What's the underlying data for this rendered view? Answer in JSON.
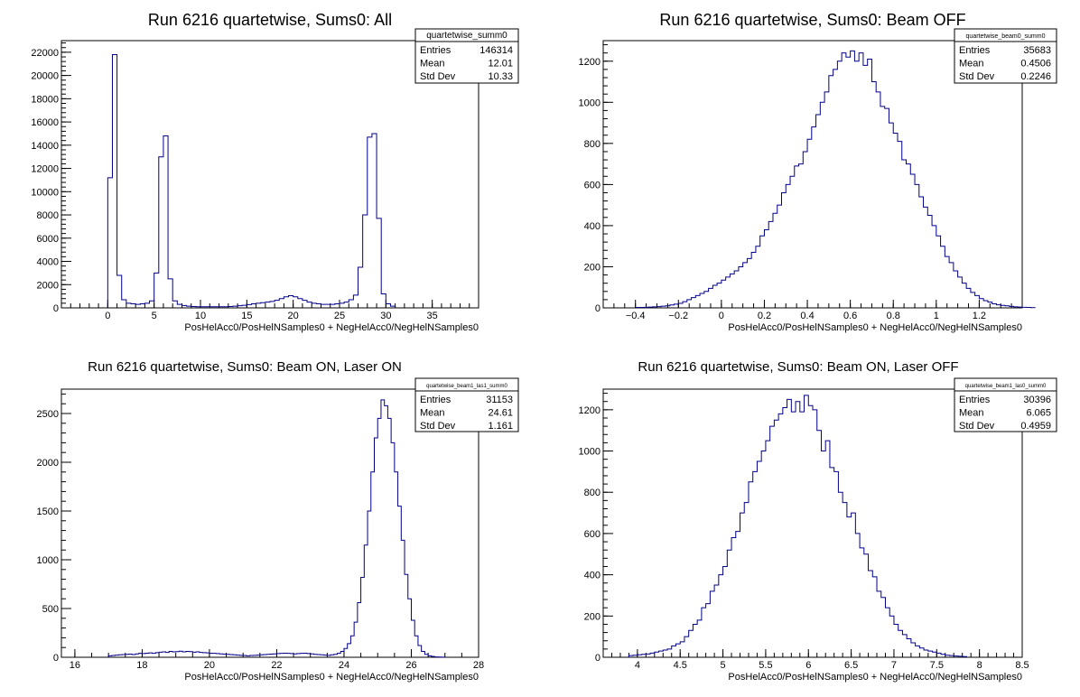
{
  "hist_color": "#00008b",
  "chart_data": [
    {
      "type": "bar",
      "title": "Run 6216 quartetwise, Sums0: All",
      "xlabel": "PosHelAcc0/PosHelNSamples0 + NegHelAcc0/NegHelNSamples0",
      "xlim": [
        -5,
        40
      ],
      "ylim": [
        0,
        23000
      ],
      "xticks": [
        0,
        5,
        10,
        15,
        20,
        25,
        30,
        35
      ],
      "yticks": [
        0,
        2000,
        4000,
        6000,
        8000,
        10000,
        12000,
        14000,
        16000,
        18000,
        20000,
        22000
      ],
      "xticks_minor": 5,
      "stats": {
        "name": "quartetwise_summ0",
        "rows": [
          {
            "label": "Entries",
            "value": "146314"
          },
          {
            "label": "Mean",
            "value": "12.01"
          },
          {
            "label": "Std Dev",
            "value": "10.33"
          }
        ]
      },
      "bins": {
        "edges_start": 0,
        "bin_width": 0.5,
        "values": [
          11200,
          21800,
          2800,
          700,
          400,
          350,
          300,
          350,
          400,
          600,
          3000,
          13000,
          14800,
          2500,
          600,
          300,
          200,
          150,
          120,
          100,
          100,
          100,
          100,
          100,
          100,
          100,
          120,
          150,
          180,
          220,
          280,
          350,
          400,
          450,
          500,
          550,
          650,
          800,
          950,
          1050,
          950,
          800,
          650,
          500,
          400,
          350,
          300,
          300,
          300,
          350,
          400,
          500,
          700,
          1100,
          3500,
          8000,
          14700,
          15000,
          7700,
          1200,
          350,
          150
        ]
      }
    },
    {
      "type": "bar",
      "title": "Run 6216 quartetwise, Sums0: Beam OFF",
      "xlabel": "PosHelAcc0/PosHelNSamples0 + NegHelAcc0/NegHelNSamples0",
      "xlim": [
        -0.55,
        1.4
      ],
      "ylim": [
        0,
        1300
      ],
      "xticks": [
        -0.4,
        -0.2,
        0,
        0.2,
        0.4,
        0.6,
        0.8,
        1,
        1.2
      ],
      "xtick_labels": [
        "−0.4",
        "−0.2",
        "0",
        "0.2",
        "0.4",
        "0.6",
        "0.8",
        "1",
        "1.2"
      ],
      "yticks": [
        0,
        200,
        400,
        600,
        800,
        1000,
        1200
      ],
      "xticks_minor": 4,
      "stats": {
        "name": "quartetwise_beam0_summ0",
        "rows": [
          {
            "label": "Entries",
            "value": "35683"
          },
          {
            "label": "Mean",
            "value": "0.4506"
          },
          {
            "label": "Std Dev",
            "value": "0.2246"
          }
        ]
      },
      "bins": {
        "edges_start": -0.4,
        "bin_width": 0.02,
        "values": [
          2,
          2,
          3,
          4,
          5,
          6,
          8,
          10,
          14,
          18,
          22,
          30,
          40,
          50,
          60,
          70,
          80,
          95,
          110,
          120,
          135,
          150,
          165,
          180,
          200,
          220,
          240,
          270,
          300,
          350,
          380,
          420,
          460,
          500,
          560,
          600,
          640,
          690,
          700,
          760,
          820,
          880,
          940,
          1000,
          1050,
          1130,
          1160,
          1200,
          1240,
          1220,
          1250,
          1200,
          1240,
          1180,
          1210,
          1100,
          1050,
          980,
          970,
          900,
          850,
          810,
          720,
          700,
          650,
          600,
          540,
          490,
          450,
          400,
          350,
          300,
          250,
          220,
          180,
          150,
          120,
          95,
          75,
          60,
          45,
          35,
          28,
          20,
          15,
          12,
          10,
          7,
          5,
          4,
          3,
          2,
          1
        ]
      }
    },
    {
      "type": "bar",
      "title": "Run 6216 quartetwise, Sums0: Beam ON, Laser ON",
      "xlabel": "PosHelAcc0/PosHelNSamples0 + NegHelAcc0/NegHelNSamples0",
      "xlim": [
        15.6,
        28
      ],
      "ylim": [
        0,
        2750
      ],
      "xticks": [
        16,
        18,
        20,
        22,
        24,
        26,
        28
      ],
      "yticks": [
        0,
        500,
        1000,
        1500,
        2000,
        2500
      ],
      "xticks_minor": 4,
      "stats": {
        "name": "quartetwise_beam1_las1_summ0",
        "rows": [
          {
            "label": "Entries",
            "value": "31153"
          },
          {
            "label": "Mean",
            "value": "24.61"
          },
          {
            "label": "Std Dev",
            "value": "1.161"
          }
        ]
      },
      "bins": {
        "edges_start": 17,
        "bin_width": 0.1,
        "values": [
          15,
          18,
          22,
          25,
          28,
          30,
          32,
          28,
          35,
          40,
          38,
          42,
          45,
          40,
          48,
          52,
          55,
          50,
          60,
          55,
          58,
          62,
          55,
          60,
          58,
          52,
          55,
          50,
          48,
          45,
          42,
          40,
          38,
          35,
          32,
          30,
          28,
          25,
          22,
          20,
          18,
          15,
          18,
          20,
          22,
          25,
          28,
          30,
          32,
          35,
          38,
          40,
          42,
          40,
          38,
          35,
          38,
          40,
          42,
          38,
          35,
          30,
          28,
          25,
          22,
          20,
          25,
          30,
          40,
          60,
          90,
          140,
          220,
          360,
          560,
          820,
          1150,
          1500,
          1900,
          2250,
          2450,
          2640,
          2580,
          2450,
          2200,
          1900,
          1550,
          1200,
          850,
          600,
          380,
          220,
          120,
          60,
          30,
          15,
          8,
          4,
          2,
          1
        ]
      }
    },
    {
      "type": "bar",
      "title": "Run 6216 quartetwise, Sums0: Beam ON, Laser OFF",
      "xlabel": "PosHelAcc0/PosHelNSamples0 + NegHelAcc0/NegHelNSamples0",
      "xlim": [
        3.6,
        8.5
      ],
      "ylim": [
        0,
        1300
      ],
      "xticks": [
        4,
        4.5,
        5,
        5.5,
        6,
        6.5,
        7,
        7.5,
        8,
        8.5
      ],
      "yticks": [
        0,
        200,
        400,
        600,
        800,
        1000,
        1200
      ],
      "xticks_minor": 5,
      "stats": {
        "name": "quartetwise_beam1_las0_summ0",
        "rows": [
          {
            "label": "Entries",
            "value": "30396"
          },
          {
            "label": "Mean",
            "value": "6.065"
          },
          {
            "label": "Std Dev",
            "value": "0.4959"
          }
        ]
      },
      "bins": {
        "edges_start": 3.9,
        "bin_width": 0.05,
        "values": [
          8,
          10,
          12,
          14,
          16,
          20,
          25,
          30,
          35,
          40,
          55,
          65,
          75,
          100,
          130,
          160,
          180,
          240,
          260,
          320,
          350,
          400,
          440,
          520,
          580,
          610,
          700,
          750,
          850,
          900,
          950,
          1000,
          1050,
          1120,
          1150,
          1180,
          1210,
          1250,
          1190,
          1240,
          1190,
          1270,
          1220,
          1200,
          1100,
          1000,
          1050,
          920,
          900,
          800,
          750,
          680,
          700,
          600,
          530,
          500,
          420,
          390,
          320,
          290,
          240,
          200,
          160,
          130,
          110,
          90,
          70,
          55,
          45,
          35,
          30,
          25,
          20,
          14,
          10,
          8,
          6,
          5,
          3
        ]
      }
    }
  ]
}
